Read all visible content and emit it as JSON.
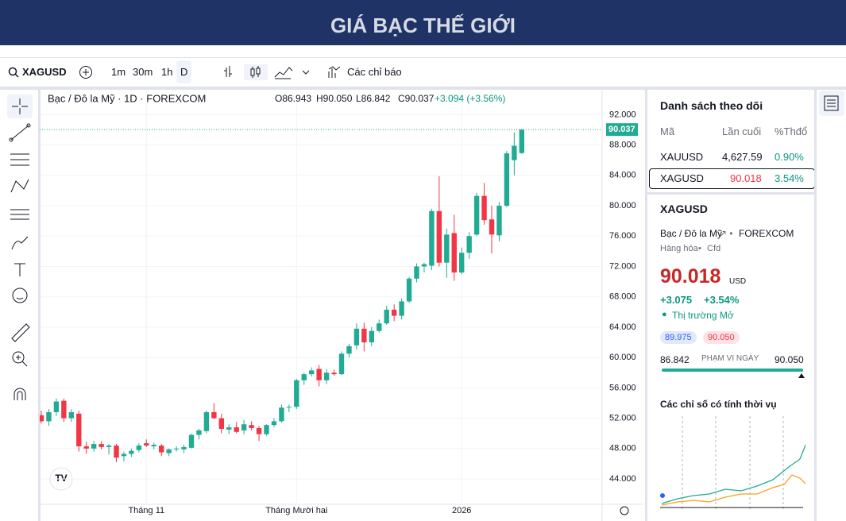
{
  "header": {
    "title": "GIÁ BẠC THẾ GIỚI"
  },
  "toolbar": {
    "symbol": "XAGUSD",
    "intervals": [
      "1m",
      "30m",
      "1h",
      "D"
    ],
    "indicators": "Các chỉ báo"
  },
  "chart_data": {
    "type": "candlestick",
    "title": "Bạc / Đô la Mỹ · 1D · FOREXCOM",
    "ohlc_legend": [
      "O86.943",
      "H90.050",
      "L86.842",
      "C90.037",
      "+3.094 (+3.56%)"
    ],
    "x": [
      null,
      null,
      null,
      null,
      null,
      null,
      null,
      null,
      null,
      null,
      null,
      null,
      null,
      null,
      "Tháng 11",
      null,
      null,
      null,
      null,
      null,
      null,
      null,
      null,
      null,
      null,
      null,
      null,
      null,
      null,
      null,
      null,
      null,
      null,
      null,
      "Tháng Mười hai",
      null,
      null,
      null,
      null,
      null,
      null,
      null,
      null,
      null,
      null,
      null,
      null,
      null,
      null,
      null,
      null,
      null,
      null,
      null,
      null,
      null,
      "2026",
      null,
      null,
      null,
      null,
      null,
      null,
      null,
      null
    ],
    "open": [
      52.4,
      51.6,
      52.8,
      54.3,
      52.0,
      52.6,
      48.3,
      48.0,
      48.6,
      48.2,
      48.4,
      47.0,
      47.3,
      47.8,
      48.7,
      48.3,
      48.4,
      47.4,
      48.0,
      47.9,
      48.1,
      49.8,
      50.3,
      52.8,
      52.0,
      50.5,
      50.8,
      50.4,
      51.1,
      50.7,
      49.9,
      51.1,
      51.6,
      53.4,
      53.5,
      57.0,
      57.8,
      58.5,
      57.0,
      58.0,
      57.8,
      60.5,
      61.6,
      63.8,
      62.0,
      63.5,
      64.5,
      66.3,
      65.5,
      67.4,
      70.4,
      72.0,
      72.1,
      79.3,
      72.5,
      76.4,
      71.2,
      73.8,
      76.2,
      81.3,
      78.2,
      76.1,
      80.0,
      86.0,
      86.943
    ],
    "high": [
      53.0,
      53.2,
      54.6,
      54.6,
      53.2,
      53.0,
      48.9,
      49.0,
      49.0,
      48.6,
      48.6,
      47.6,
      48.0,
      48.7,
      49.2,
      48.8,
      48.6,
      48.0,
      48.3,
      48.5,
      50.0,
      50.6,
      53.0,
      54.0,
      52.6,
      51.2,
      51.5,
      51.8,
      51.6,
      51.0,
      51.2,
      52.0,
      53.8,
      53.8,
      57.2,
      58.0,
      58.7,
      59.0,
      58.5,
      58.4,
      60.8,
      61.8,
      64.5,
      64.6,
      64.0,
      65.0,
      66.8,
      67.0,
      67.8,
      70.6,
      72.4,
      72.5,
      79.6,
      83.9,
      77.0,
      78.8,
      74.5,
      76.5,
      81.7,
      83.0,
      80.0,
      80.5,
      87.2,
      89.7,
      90.05
    ],
    "low": [
      51.3,
      51.0,
      52.3,
      51.5,
      51.5,
      47.6,
      47.3,
      47.6,
      47.9,
      47.2,
      46.2,
      46.3,
      46.9,
      47.5,
      48.2,
      47.9,
      47.0,
      47.0,
      47.6,
      47.4,
      48.0,
      49.2,
      50.0,
      51.9,
      50.0,
      49.9,
      50.0,
      49.9,
      50.4,
      49.0,
      49.7,
      50.8,
      51.4,
      52.8,
      53.2,
      56.4,
      57.5,
      56.2,
      56.5,
      57.6,
      57.7,
      60.0,
      61.0,
      60.8,
      61.5,
      63.3,
      64.3,
      64.8,
      65.0,
      67.2,
      69.9,
      71.2,
      71.5,
      72.0,
      70.5,
      70.1,
      71.0,
      73.0,
      76.0,
      77.5,
      73.7,
      75.3,
      79.8,
      84.0,
      86.842
    ],
    "close": [
      51.6,
      52.8,
      54.2,
      52.0,
      52.8,
      48.3,
      48.0,
      48.6,
      48.2,
      48.4,
      46.8,
      47.3,
      47.7,
      48.4,
      48.4,
      48.5,
      47.5,
      47.9,
      48.0,
      48.2,
      49.8,
      50.4,
      52.8,
      52.0,
      50.6,
      50.8,
      50.2,
      51.2,
      50.7,
      49.9,
      51.1,
      51.6,
      53.4,
      53.5,
      57.0,
      57.8,
      58.3,
      57.0,
      58.0,
      57.8,
      60.5,
      61.5,
      63.8,
      62.0,
      63.5,
      64.5,
      66.3,
      65.5,
      67.4,
      70.4,
      72.0,
      72.3,
      79.3,
      72.5,
      76.2,
      71.2,
      73.8,
      76.0,
      81.3,
      78.1,
      76.2,
      80.0,
      86.9,
      87.9,
      90.037
    ],
    "last_price_label": "90.037",
    "up_color": "#22ab94",
    "down_color": "#f23645",
    "ylim": [
      41.7,
      95.6
    ],
    "yticks": [
      {
        "value": 44,
        "label": "44.000"
      },
      {
        "value": 48,
        "label": "48.000"
      },
      {
        "value": 52,
        "label": "52.000"
      },
      {
        "value": 56,
        "label": "56.000"
      },
      {
        "value": 60,
        "label": "60.000"
      },
      {
        "value": 64,
        "label": "64.000"
      },
      {
        "value": 68,
        "label": "68.000"
      },
      {
        "value": 72,
        "label": "72.000"
      },
      {
        "value": 76,
        "label": "76.000"
      },
      {
        "value": 80,
        "label": "80.000"
      },
      {
        "value": 84,
        "label": "84.000"
      },
      {
        "value": 88,
        "label": "88.000"
      },
      {
        "value": 92,
        "label": "92.000"
      }
    ],
    "grid": true
  },
  "watchlist": {
    "title": "Danh sách theo dõi",
    "columns": [
      "Mã",
      "Lần cuối",
      "%Thđổ"
    ],
    "rows": [
      [
        "XAUUSD",
        "4,627.59",
        "0.90%"
      ],
      [
        "XAGUSD",
        "90.018",
        "3.54%"
      ]
    ]
  },
  "details": {
    "symbol": "XAGUSD",
    "description": "Bạc / Đô la Mỹ",
    "exchange": "FOREXCOM",
    "category": "Hàng hóa",
    "kind": "Cfd",
    "price": "90.018",
    "currency": "USD",
    "change": "+3.075",
    "change_pct": "+3.54%",
    "status": "Thị trường Mở",
    "bid": "89.975",
    "ask": "90.050",
    "range_low": "86.842",
    "range_label": "PHẠM VI NGÀY",
    "range_high": "90.050",
    "seasonal_title": "Các chỉ số có tính thời vụ"
  }
}
